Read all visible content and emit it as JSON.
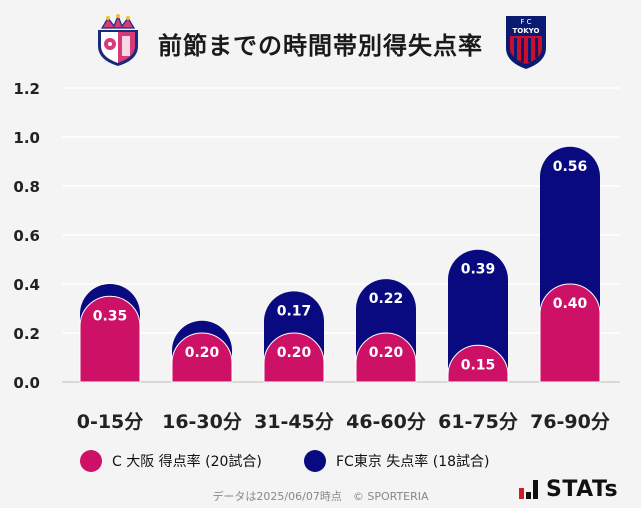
{
  "header": {
    "title": "前節までの時間帯別得失点率",
    "left_crest_icon": "cerezo-osaka-crest-icon",
    "right_crest_icon": "fc-tokyo-crest-icon",
    "right_crest_text_top": "F C",
    "right_crest_text_mid": "TOKYO"
  },
  "chart_data": {
    "type": "bar",
    "stacked": true,
    "categories": [
      "0-15分",
      "16-30分",
      "31-45分",
      "46-60分",
      "61-75分",
      "76-90分"
    ],
    "series": [
      {
        "name": "C大阪 得点率 (20試合)",
        "values": [
          0.35,
          0.2,
          0.2,
          0.2,
          0.15,
          0.4
        ],
        "color": "#cc1166"
      },
      {
        "name": "FC東京 失点率 (18試合)",
        "values": [
          0.05,
          0.05,
          0.17,
          0.22,
          0.39,
          0.56
        ],
        "labels": [
          "",
          "",
          "0.17",
          "0.22",
          "0.39",
          "0.56"
        ],
        "color": "#0a0a80"
      }
    ],
    "series_labels": [
      [
        "0.35",
        "0.20",
        "0.20",
        "0.20",
        "0.15",
        "0.40"
      ],
      [
        "",
        "",
        "0.17",
        "0.22",
        "0.39",
        "0.56"
      ]
    ],
    "ylim": [
      0,
      1.2
    ],
    "yticks": [
      "0.0",
      "0.2",
      "0.4",
      "0.6",
      "0.8",
      "1.0",
      "1.2"
    ],
    "grid": true,
    "legend_position": "bottom"
  },
  "legend": [
    {
      "label": "C 大阪 得点率 (20試合)",
      "color": "#cc1166"
    },
    {
      "label": "FC東京 失点率 (18試合)",
      "color": "#0a0a80"
    }
  ],
  "footer": {
    "text": "データは2025/06/07時点　© SPORTERIA"
  },
  "brand": {
    "stats_text": "STATs",
    "logo_icon": "stats-logo-icon"
  }
}
